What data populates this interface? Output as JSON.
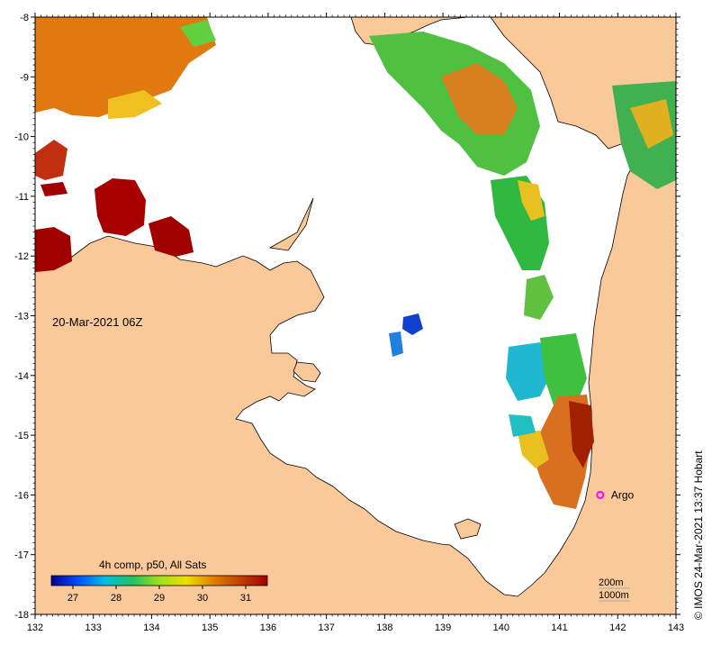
{
  "map": {
    "date_label": "20-Mar-2021 06Z",
    "credit": "© IMOS 24-Mar-2021 13:37 Hobart",
    "marker": {
      "label": "Argo",
      "lon": 141.7,
      "lat": -16.0,
      "color": "#ff00ff"
    },
    "contours": [
      "200m",
      "1000m"
    ],
    "axes": {
      "lon_range": [
        132,
        143
      ],
      "lat_range": [
        -18,
        -8
      ],
      "lon_ticks": [
        "132",
        "133",
        "134",
        "135",
        "136",
        "137",
        "138",
        "139",
        "140",
        "141",
        "142",
        "143"
      ],
      "lat_ticks": [
        "-8",
        "-9",
        "-10",
        "-11",
        "-12",
        "-13",
        "-14",
        "-15",
        "-16",
        "-17",
        "-18"
      ]
    },
    "colors": {
      "land": "#f9c99a",
      "ocean_no_data": "#ffffff"
    },
    "colorbar": {
      "title": "4h comp, p50, All Sats",
      "min": 26.5,
      "max": 31.5,
      "ticks": [
        "27",
        "28",
        "29",
        "30",
        "31"
      ],
      "stops": [
        "#000090",
        "#0050ff",
        "#00c0e0",
        "#20c060",
        "#a0e020",
        "#f0e000",
        "#e08000",
        "#c04000",
        "#a00000"
      ]
    }
  }
}
